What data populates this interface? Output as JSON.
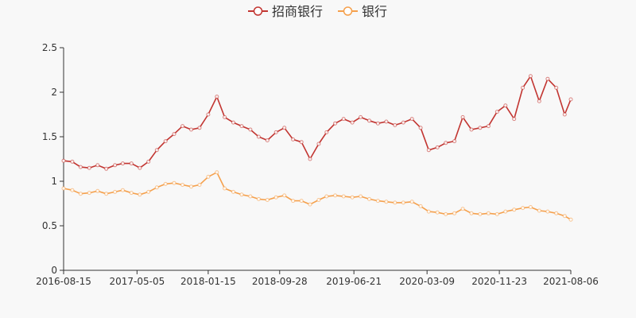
{
  "chart_data": {
    "type": "line",
    "legend_position": "top-center",
    "grid": false,
    "x": [
      "2016-08-15",
      "2016-09-15",
      "2016-10-15",
      "2016-11-15",
      "2016-12-15",
      "2017-01-15",
      "2017-02-15",
      "2017-03-15",
      "2017-04-15",
      "2017-05-15",
      "2017-06-15",
      "2017-07-15",
      "2017-08-15",
      "2017-09-15",
      "2017-10-15",
      "2017-11-15",
      "2017-12-15",
      "2018-01-15",
      "2018-02-15",
      "2018-03-15",
      "2018-04-15",
      "2018-05-15",
      "2018-06-15",
      "2018-07-15",
      "2018-08-15",
      "2018-09-15",
      "2018-10-15",
      "2018-11-15",
      "2018-12-15",
      "2019-01-15",
      "2019-02-15",
      "2019-03-15",
      "2019-04-15",
      "2019-05-15",
      "2019-06-15",
      "2019-07-15",
      "2019-08-15",
      "2019-09-15",
      "2019-10-15",
      "2019-11-15",
      "2019-12-15",
      "2020-01-15",
      "2020-02-15",
      "2020-03-15",
      "2020-04-15",
      "2020-05-15",
      "2020-06-15",
      "2020-07-15",
      "2020-08-15",
      "2020-09-15",
      "2020-10-15",
      "2020-11-15",
      "2020-12-15",
      "2021-01-15",
      "2021-02-15",
      "2021-03-15",
      "2021-04-15",
      "2021-05-15",
      "2021-06-15",
      "2021-07-15",
      "2021-08-06"
    ],
    "series": [
      {
        "name": "招商银行",
        "color": "#c23531",
        "values": [
          1.23,
          1.22,
          1.16,
          1.15,
          1.18,
          1.14,
          1.18,
          1.2,
          1.2,
          1.15,
          1.22,
          1.35,
          1.45,
          1.53,
          1.62,
          1.58,
          1.6,
          1.75,
          1.95,
          1.72,
          1.66,
          1.62,
          1.58,
          1.5,
          1.46,
          1.55,
          1.6,
          1.47,
          1.44,
          1.25,
          1.42,
          1.55,
          1.65,
          1.7,
          1.66,
          1.72,
          1.68,
          1.65,
          1.67,
          1.63,
          1.66,
          1.7,
          1.6,
          1.35,
          1.38,
          1.43,
          1.45,
          1.72,
          1.58,
          1.6,
          1.62,
          1.78,
          1.85,
          1.7,
          2.05,
          2.18,
          1.9,
          2.15,
          2.05,
          1.75,
          1.92
        ]
      },
      {
        "name": "银行",
        "color": "#f5a04c",
        "values": [
          0.92,
          0.9,
          0.86,
          0.87,
          0.89,
          0.86,
          0.88,
          0.9,
          0.87,
          0.85,
          0.88,
          0.93,
          0.97,
          0.98,
          0.96,
          0.94,
          0.96,
          1.05,
          1.1,
          0.92,
          0.88,
          0.85,
          0.83,
          0.8,
          0.79,
          0.82,
          0.84,
          0.78,
          0.78,
          0.74,
          0.79,
          0.83,
          0.84,
          0.83,
          0.82,
          0.83,
          0.8,
          0.78,
          0.77,
          0.76,
          0.76,
          0.77,
          0.72,
          0.66,
          0.65,
          0.63,
          0.64,
          0.69,
          0.64,
          0.63,
          0.64,
          0.63,
          0.66,
          0.68,
          0.7,
          0.71,
          0.67,
          0.66,
          0.64,
          0.61,
          0.57
        ]
      }
    ],
    "x_ticks": [
      "2016-08-15",
      "2017-05-05",
      "2018-01-15",
      "2018-09-28",
      "2019-06-21",
      "2020-03-09",
      "2020-11-23",
      "2021-08-06"
    ],
    "y_ticks": [
      "0",
      "0.5",
      "1",
      "1.5",
      "2",
      "2.5"
    ],
    "ylim": [
      0,
      2.5
    ]
  }
}
